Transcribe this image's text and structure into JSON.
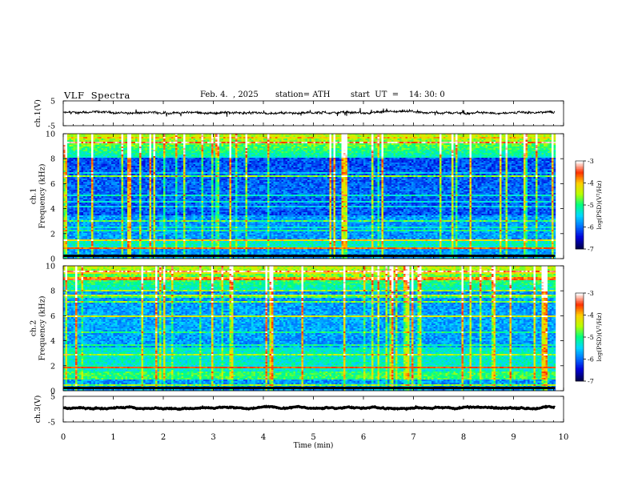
{
  "header": {
    "title": "VLF  Spectra",
    "date": "Feb. 4.  , 2025",
    "station": "station= ATH",
    "start": "start  UT  =    14: 30: 0"
  },
  "chart_data": [
    {
      "type": "line",
      "name": "ch1-waveform",
      "ylabel": "ch.1(V)",
      "xlim": [
        0,
        10
      ],
      "ylim": [
        -5,
        5
      ],
      "yticks": [
        "5",
        "-5"
      ],
      "data_xrange": [
        0,
        9.83
      ],
      "approx_level": 0.2
    },
    {
      "type": "heatmap",
      "name": "ch1-spectrogram",
      "ylabel": "ch.1\nFrequency (kHz)",
      "xlim": [
        0,
        10
      ],
      "ylim": [
        0,
        10
      ],
      "yticks": [
        "0",
        "2",
        "4",
        "6",
        "8",
        "10"
      ],
      "colorbar": {
        "label": "log(PSD)(V²/Hz)",
        "range": [
          -7,
          -3
        ],
        "ticks": [
          "-3",
          "-4",
          "-5",
          "-6",
          "-7"
        ]
      }
    },
    {
      "type": "heatmap",
      "name": "ch2-spectrogram",
      "ylabel": "ch.2\nFrequency (kHz)",
      "xlim": [
        0,
        10
      ],
      "ylim": [
        0,
        10
      ],
      "yticks": [
        "0",
        "2",
        "4",
        "6",
        "8",
        "10"
      ],
      "colorbar": {
        "label": "log(PSD)(V²/Hz)",
        "range": [
          -7,
          -3
        ],
        "ticks": [
          "-3",
          "-4",
          "-5",
          "-6",
          "-7"
        ]
      }
    },
    {
      "type": "line",
      "name": "ch3-waveform",
      "ylabel": "ch.3(V)",
      "xlim": [
        0,
        10
      ],
      "ylim": [
        -5,
        5
      ],
      "yticks": [
        "5",
        "-5"
      ],
      "data_xrange": [
        0,
        9.83
      ],
      "approx_level": 0.5
    }
  ],
  "xaxis": {
    "label": "Time  (min)",
    "ticks": [
      "0",
      "1",
      "2",
      "3",
      "4",
      "5",
      "6",
      "7",
      "8",
      "9",
      "10"
    ]
  },
  "colors": {
    "colormap": [
      "#000050",
      "#0000d8",
      "#0070ff",
      "#00d8ff",
      "#00ff80",
      "#b8ff00",
      "#ffd000",
      "#ff3000",
      "#ffffff"
    ]
  }
}
